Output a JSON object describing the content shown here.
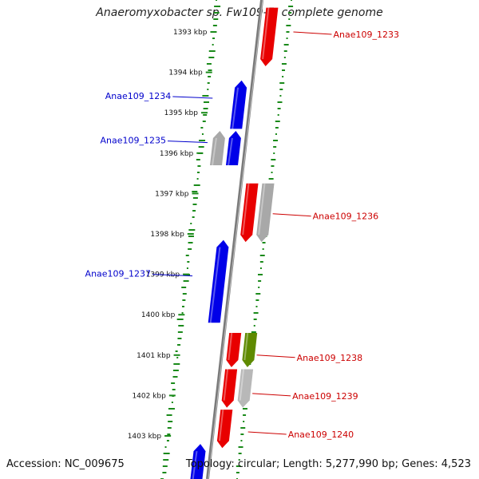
{
  "title": "Anaeromyxobacter sp. Fw109-5, complete genome",
  "accession_text": "Accession: NC_009675",
  "summary_text": "Topology: circular; Length: 5,277,990 bp; Genes: 4,523",
  "ticks": [
    {
      "label": "1393 kbp",
      "kbp": 1393
    },
    {
      "label": "1394 kbp",
      "kbp": 1394
    },
    {
      "label": "1395 kbp",
      "kbp": 1395
    },
    {
      "label": "1396 kbp",
      "kbp": 1396
    },
    {
      "label": "1397 kbp",
      "kbp": 1397
    },
    {
      "label": "1398 kbp",
      "kbp": 1398
    },
    {
      "label": "1399 kbp",
      "kbp": 1399
    },
    {
      "label": "1400 kbp",
      "kbp": 1400
    },
    {
      "label": "1401 kbp",
      "kbp": 1401
    },
    {
      "label": "1402 kbp",
      "kbp": 1402
    },
    {
      "label": "1403 kbp",
      "kbp": 1403
    }
  ],
  "genes": [
    {
      "name": "",
      "strand": "+",
      "start": 1392.4,
      "end": 1393.85,
      "color": "#e80000"
    },
    {
      "name": "",
      "strand": "-",
      "start": 1394.2,
      "end": 1395.4,
      "color": "#0000e8"
    },
    {
      "name": "",
      "strand": "-",
      "start": 1395.45,
      "end": 1396.3,
      "color": "#a8a8a8",
      "lane": 2
    },
    {
      "name": "",
      "strand": "-",
      "start": 1395.45,
      "end": 1396.3,
      "color": "#0000e8"
    },
    {
      "name": "",
      "strand": "+",
      "start": 1396.75,
      "end": 1398.2,
      "color": "#e80000"
    },
    {
      "name": "",
      "strand": "+",
      "start": 1396.75,
      "end": 1398.2,
      "color": "#a8a8a8",
      "lane": 2
    },
    {
      "name": "",
      "strand": "-",
      "start": 1398.15,
      "end": 1400.2,
      "color": "#0000e8"
    },
    {
      "name": "",
      "strand": "+",
      "start": 1400.45,
      "end": 1401.3,
      "color": "#e80000"
    },
    {
      "name": "",
      "strand": "+",
      "start": 1400.45,
      "end": 1401.3,
      "color": "#5f8a00",
      "lane": 2
    },
    {
      "name": "",
      "strand": "+",
      "start": 1401.35,
      "end": 1402.3,
      "color": "#e80000"
    },
    {
      "name": "",
      "strand": "+",
      "start": 1401.35,
      "end": 1402.3,
      "color": "#b8b8b8",
      "lane": 2
    },
    {
      "name": "",
      "strand": "+",
      "start": 1402.35,
      "end": 1403.3,
      "color": "#e80000"
    },
    {
      "name": "",
      "strand": "-",
      "start": 1403.2,
      "end": 1404.2,
      "color": "#0000e8"
    }
  ],
  "labels": [
    {
      "text": "Anae109_1233",
      "color": "#cc0000",
      "side": "right",
      "kbp": 1393.0
    },
    {
      "text": "Anae109_1234",
      "color": "#0000cc",
      "side": "left",
      "kbp": 1394.6
    },
    {
      "text": "Anae109_1235",
      "color": "#0000cc",
      "side": "left",
      "kbp": 1395.7
    },
    {
      "text": "Anae109_1236",
      "color": "#cc0000",
      "side": "right",
      "kbp": 1397.5
    },
    {
      "text": "Anae109_1237",
      "color": "#0000cc",
      "side": "left",
      "kbp": 1399.0
    },
    {
      "text": "Anae109_1238",
      "color": "#cc0000",
      "side": "right",
      "kbp": 1401.0
    },
    {
      "text": "Anae109_1239",
      "color": "#cc0000",
      "side": "right",
      "kbp": 1401.95
    },
    {
      "text": "Anae109_1240",
      "color": "#cc0000",
      "side": "right",
      "kbp": 1402.9
    }
  ],
  "colors": {
    "backbone": "#7a7a7a",
    "gc_ticks": "#1a8a1a",
    "forward": "#e80000",
    "reverse": "#0000e8",
    "other": "#a8a8a8"
  }
}
